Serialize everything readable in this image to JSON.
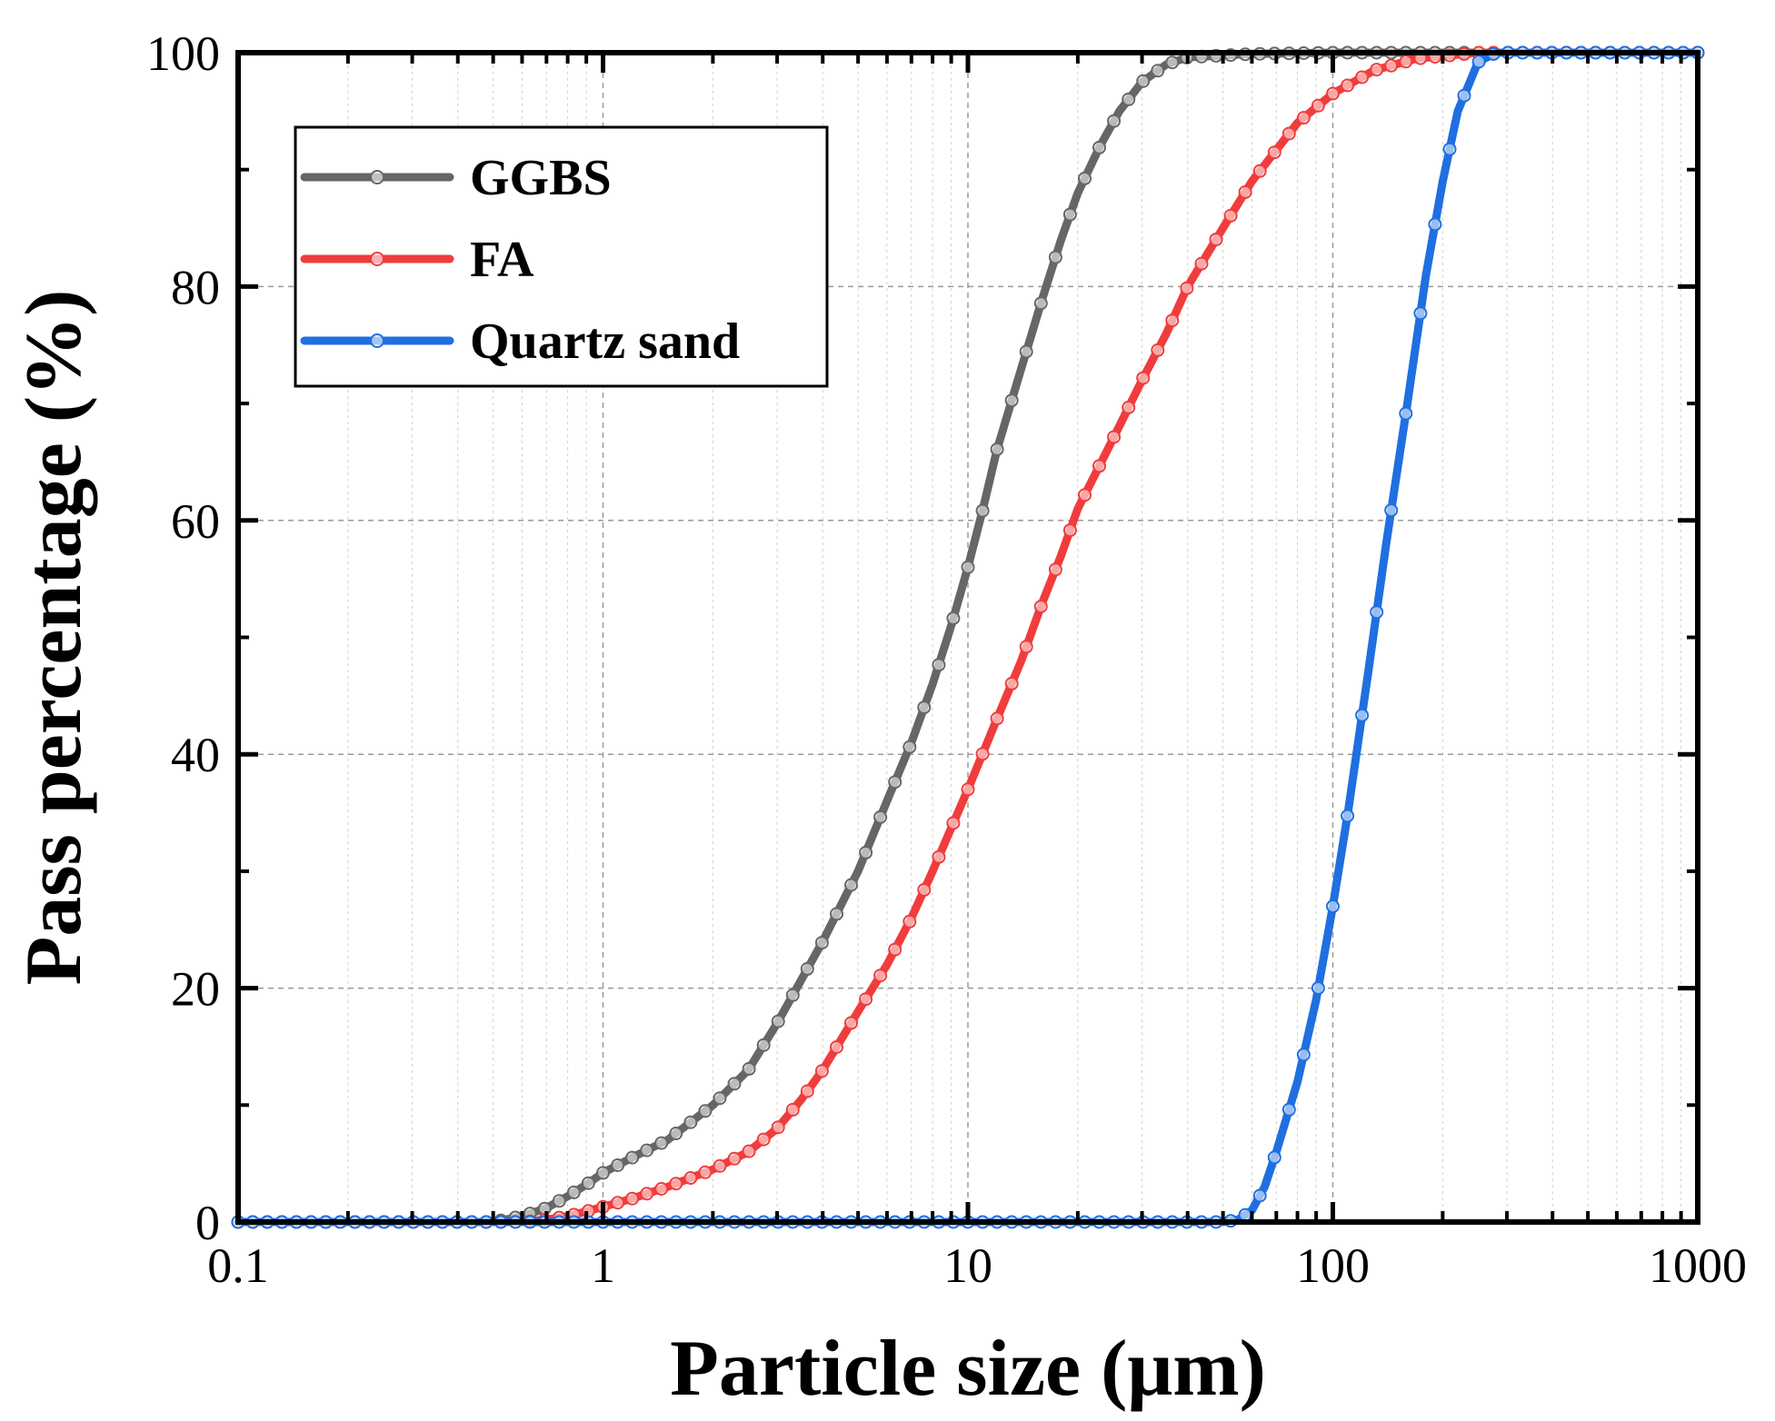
{
  "chart_data": {
    "type": "line",
    "title": "",
    "xlabel": "Particle size (μm)",
    "ylabel": "Pass percentage (%)",
    "xscale": "log",
    "xlim": [
      0.1,
      1000
    ],
    "ylim": [
      0,
      100
    ],
    "xticks": [
      0.1,
      1,
      10,
      100,
      1000
    ],
    "xtick_labels": [
      "0.1",
      "1",
      "10",
      "100",
      "1000"
    ],
    "yticks": [
      0,
      20,
      40,
      60,
      80,
      100
    ],
    "ytick_labels": [
      "0",
      "20",
      "40",
      "60",
      "80",
      "100"
    ],
    "grid": true,
    "legend_position": "top-left",
    "series": [
      {
        "name": "GGBS",
        "color": "#666666",
        "points": [
          [
            0.1,
            0
          ],
          [
            0.5,
            0
          ],
          [
            0.6,
            0.5
          ],
          [
            0.7,
            1.2
          ],
          [
            0.8,
            2.2
          ],
          [
            0.9,
            3.2
          ],
          [
            1,
            4.2
          ],
          [
            1.2,
            5.5
          ],
          [
            1.5,
            7
          ],
          [
            2,
            10
          ],
          [
            2.5,
            13
          ],
          [
            3,
            17
          ],
          [
            4,
            24
          ],
          [
            5,
            30
          ],
          [
            6,
            36
          ],
          [
            7,
            41
          ],
          [
            8,
            46
          ],
          [
            9,
            51
          ],
          [
            10,
            56
          ],
          [
            11,
            61
          ],
          [
            12,
            66
          ],
          [
            14,
            73
          ],
          [
            16,
            79
          ],
          [
            18,
            84
          ],
          [
            20,
            88
          ],
          [
            23,
            92
          ],
          [
            26,
            95
          ],
          [
            30,
            97.5
          ],
          [
            35,
            99
          ],
          [
            40,
            99.6
          ],
          [
            60,
            99.9
          ],
          [
            100,
            100
          ],
          [
            1000,
            100
          ]
        ]
      },
      {
        "name": "FA",
        "color": "#f03c3c",
        "points": [
          [
            0.1,
            0
          ],
          [
            0.6,
            0
          ],
          [
            0.7,
            0.2
          ],
          [
            0.8,
            0.5
          ],
          [
            0.9,
            0.9
          ],
          [
            1,
            1.3
          ],
          [
            1.2,
            2
          ],
          [
            1.5,
            3
          ],
          [
            2,
            4.5
          ],
          [
            2.5,
            6
          ],
          [
            3,
            8
          ],
          [
            3.5,
            10.5
          ],
          [
            4,
            13
          ],
          [
            5,
            18
          ],
          [
            6,
            22
          ],
          [
            7,
            26
          ],
          [
            8,
            30
          ],
          [
            10,
            37
          ],
          [
            12,
            43
          ],
          [
            14,
            48
          ],
          [
            16,
            53
          ],
          [
            18,
            57
          ],
          [
            20,
            61
          ],
          [
            25,
            67
          ],
          [
            30,
            72
          ],
          [
            35,
            76
          ],
          [
            40,
            80
          ],
          [
            50,
            85
          ],
          [
            60,
            89
          ],
          [
            80,
            94
          ],
          [
            100,
            96.5
          ],
          [
            130,
            98.5
          ],
          [
            170,
            99.5
          ],
          [
            250,
            100
          ],
          [
            1000,
            100
          ]
        ]
      },
      {
        "name": "Quartz sand",
        "color": "#1f6fe0",
        "points": [
          [
            0.1,
            0
          ],
          [
            50,
            0
          ],
          [
            55,
            0.2
          ],
          [
            60,
            1
          ],
          [
            65,
            3
          ],
          [
            70,
            6
          ],
          [
            80,
            12
          ],
          [
            90,
            19
          ],
          [
            100,
            27
          ],
          [
            110,
            35
          ],
          [
            125,
            47
          ],
          [
            140,
            58
          ],
          [
            160,
            70
          ],
          [
            180,
            81
          ],
          [
            200,
            89
          ],
          [
            220,
            95
          ],
          [
            250,
            99.2
          ],
          [
            280,
            100
          ],
          [
            1000,
            100
          ]
        ]
      }
    ]
  }
}
